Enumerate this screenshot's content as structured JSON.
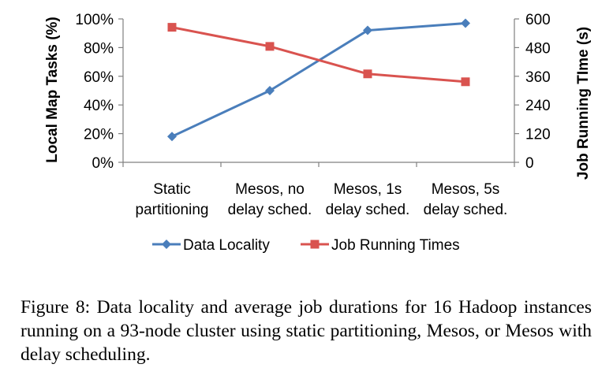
{
  "chart_data": {
    "type": "line",
    "categories": [
      [
        "Static",
        "partitioning"
      ],
      [
        "Mesos, no",
        "delay sched."
      ],
      [
        "Mesos, 1s",
        "delay sched."
      ],
      [
        "Mesos, 5s",
        "delay sched."
      ]
    ],
    "series": [
      {
        "name": "Data Locality",
        "axis": "left",
        "values": [
          18,
          50,
          92,
          97
        ],
        "color": "#4a7ebb",
        "marker": "diamond"
      },
      {
        "name": "Job Running Times",
        "axis": "right",
        "values": [
          565,
          485,
          370,
          337
        ],
        "color": "#d9534f",
        "marker": "square"
      }
    ],
    "y_left": {
      "label": "Local Map Tasks (%)",
      "range": [
        0,
        100
      ],
      "ticks": [
        0,
        20,
        40,
        60,
        80,
        100
      ],
      "tick_labels": [
        "0%",
        "20%",
        "40%",
        "60%",
        "80%",
        "100%"
      ]
    },
    "y_right": {
      "label": "Job Running TIme (s)",
      "range": [
        0,
        600
      ],
      "ticks": [
        0,
        120,
        240,
        360,
        480,
        600
      ],
      "tick_labels": [
        "0",
        "120",
        "240",
        "360",
        "480",
        "600"
      ]
    },
    "grid": false,
    "legend_position": "bottom"
  },
  "caption": {
    "text": "Figure 8:  Data locality and average job durations for 16 Hadoop instances running on a 93-node cluster using static partitioning, Mesos, or Mesos with delay scheduling."
  },
  "colors": {
    "axis": "#808080",
    "text": "#000000",
    "background": "#ffffff"
  }
}
